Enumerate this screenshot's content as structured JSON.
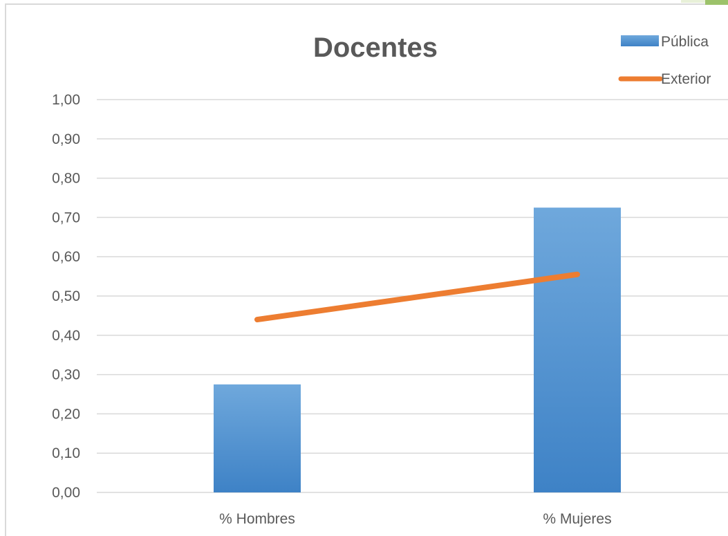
{
  "chart_data": {
    "type": "bar",
    "title": "Docentes",
    "xlabel": "",
    "ylabel": "",
    "categories": [
      "% Hombres",
      "% Mujeres"
    ],
    "ylim": [
      0,
      1
    ],
    "y_ticks": [
      "0,00",
      "0,10",
      "0,20",
      "0,30",
      "0,40",
      "0,50",
      "0,60",
      "0,70",
      "0,80",
      "0,90",
      "1,00"
    ],
    "grid": true,
    "legend_position": "top-right",
    "series": [
      {
        "name": "Pública",
        "kind": "bar",
        "values": [
          0.275,
          0.725
        ],
        "color": "#5b9bd5"
      },
      {
        "name": "Exterior",
        "kind": "line",
        "values": [
          0.44,
          0.555
        ],
        "color": "#ed7d31"
      }
    ]
  }
}
